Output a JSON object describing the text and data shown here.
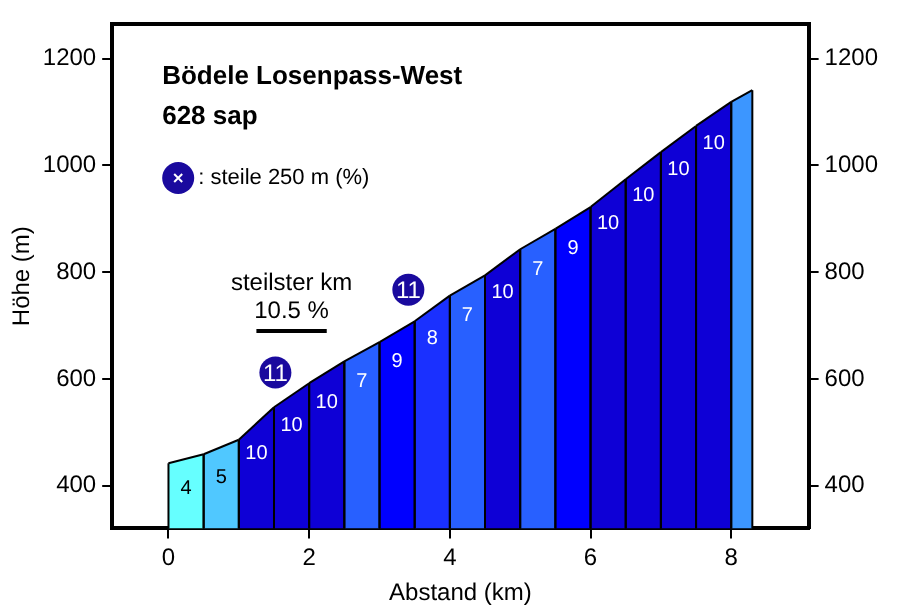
{
  "chart_data": {
    "type": "area",
    "title": "Bödele Losenpass-West",
    "subtitle": "628 sap",
    "xlabel": "Abstand (km)",
    "ylabel": "Höhe (m)",
    "xlim": [
      -0.8,
      9.1
    ],
    "xticks": [
      0,
      2,
      4,
      6,
      8
    ],
    "ylim": [
      320,
      1265
    ],
    "yticks": [
      400,
      600,
      800,
      1000,
      1200
    ],
    "y2lim": [
      320,
      1265
    ],
    "y2ticks": [
      400,
      600,
      800,
      1000,
      1200
    ],
    "grid": false,
    "legend": "top left",
    "series": [
      {
        "color": "#66ffff",
        "x": [
          0,
          0.5
        ],
        "values": [
          442,
          459
        ]
      },
      {
        "color": "#50c8ff",
        "x": [
          0.5,
          1
        ],
        "values": [
          459,
          486
        ]
      },
      {
        "color": "#0e00d6",
        "x": [
          1,
          1.5
        ],
        "values": [
          486,
          547
        ]
      },
      {
        "color": "#0e00d6",
        "x": [
          1.5,
          2
        ],
        "values": [
          547,
          592
        ]
      },
      {
        "color": "#0e00d6",
        "x": [
          2,
          2.5
        ],
        "values": [
          592,
          633
        ]
      },
      {
        "color": "#2860ff",
        "x": [
          2.5,
          3
        ],
        "values": [
          633,
          669
        ]
      },
      {
        "color": "#0000ff",
        "x": [
          3,
          3.5
        ],
        "values": [
          669,
          708
        ]
      },
      {
        "color": "#1a30ff",
        "x": [
          3.5,
          4
        ],
        "values": [
          708,
          756
        ]
      },
      {
        "color": "#2860ff",
        "x": [
          4,
          4.5
        ],
        "values": [
          756,
          794
        ]
      },
      {
        "color": "#0e00d6",
        "x": [
          4.5,
          5
        ],
        "values": [
          794,
          843
        ]
      },
      {
        "color": "#2860ff",
        "x": [
          5,
          5.5
        ],
        "values": [
          843,
          881
        ]
      },
      {
        "color": "#0000ff",
        "x": [
          5.5,
          6
        ],
        "values": [
          881,
          922
        ]
      },
      {
        "color": "#0e00d6",
        "x": [
          6,
          6.5
        ],
        "values": [
          922,
          974
        ]
      },
      {
        "color": "#0e00d6",
        "x": [
          6.5,
          7
        ],
        "values": [
          974,
          1025
        ]
      },
      {
        "color": "#0e00d6",
        "x": [
          7,
          7.5
        ],
        "values": [
          1025,
          1074
        ]
      },
      {
        "color": "#0e00d6",
        "x": [
          7.5,
          8
        ],
        "values": [
          1074,
          1119
        ]
      },
      {
        "color": "#3c96ff",
        "x": [
          8,
          8.3
        ],
        "values": [
          1119,
          1141
        ]
      },
      {
        "type": "scatter",
        "name": ": steile 250 m (%)",
        "color": "#1a0a9e",
        "marker": "circle",
        "x": [
          1.52,
          3.41
        ],
        "values": [
          612,
          767
        ]
      },
      {
        "type": "line",
        "color": "#000000",
        "x": [
          1.25,
          2.25
        ],
        "values": [
          690,
          690
        ]
      }
    ],
    "annotations": [
      {
        "text": "steilster km",
        "x": 1.75,
        "y": 690
      },
      {
        "text": "10.5 %",
        "x": 1.75,
        "y": 690
      },
      {
        "text": "11",
        "x": 1.52,
        "y": 612
      },
      {
        "text": "11",
        "x": 3.41,
        "y": 767
      },
      {
        "text": "4",
        "x": 0.25,
        "y": 450.5
      },
      {
        "text": "5",
        "x": 0.75,
        "y": 472.5
      },
      {
        "text": "10",
        "x": 1.25,
        "y": 516.5
      },
      {
        "text": "10",
        "x": 1.75,
        "y": 569.5
      },
      {
        "text": "10",
        "x": 2.25,
        "y": 612.5
      },
      {
        "text": "7",
        "x": 2.75,
        "y": 651
      },
      {
        "text": "9",
        "x": 3.25,
        "y": 688.5
      },
      {
        "text": "8",
        "x": 3.75,
        "y": 732
      },
      {
        "text": "7",
        "x": 4.25,
        "y": 775
      },
      {
        "text": "10",
        "x": 4.75,
        "y": 818.5
      },
      {
        "text": "7",
        "x": 5.25,
        "y": 862
      },
      {
        "text": "9",
        "x": 5.75,
        "y": 901.5
      },
      {
        "text": "10",
        "x": 6.25,
        "y": 948
      },
      {
        "text": "10",
        "x": 6.75,
        "y": 999.5
      },
      {
        "text": "10",
        "x": 7.25,
        "y": 1049.5
      },
      {
        "text": "10",
        "x": 7.75,
        "y": 1096.5
      }
    ]
  }
}
